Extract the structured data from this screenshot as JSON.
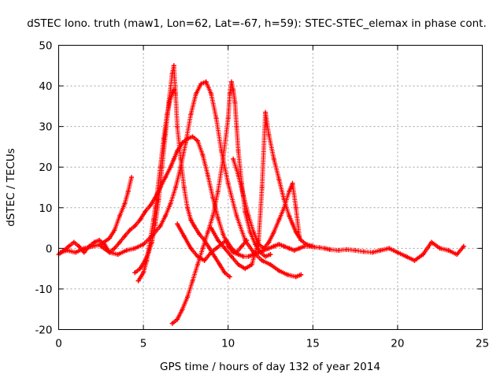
{
  "chart_data": {
    "type": "scatter",
    "title": "dSTEC Iono. truth (maw1, Lon=62, Lat=-67, h=59): STEC-STEC_elemax in phase cont.",
    "xlabel": "GPS time / hours of day 132 of year 2014",
    "ylabel": "dSTEC  / TECUs",
    "xlim": [
      0,
      25
    ],
    "ylim": [
      -20,
      50
    ],
    "xticks": [
      0,
      5,
      10,
      15,
      20,
      25
    ],
    "yticks": [
      -20,
      -10,
      0,
      10,
      20,
      30,
      40,
      50
    ],
    "grid": true,
    "marker": "+",
    "color": "#ff0000",
    "series": [
      {
        "x": [
          0.0,
          0.3,
          0.6,
          0.9,
          1.2,
          1.5,
          1.8,
          2.1,
          2.4,
          2.7,
          3.0,
          3.3,
          3.6,
          3.9,
          4.2,
          4.5,
          4.8,
          5.1,
          5.4,
          5.7,
          6.0,
          6.3,
          6.6,
          6.8,
          7.0,
          7.3,
          7.6,
          7.9,
          8.2,
          8.5,
          8.8,
          9.1,
          9.4,
          9.7,
          10.0,
          10.3,
          10.6,
          10.9,
          11.2,
          11.5,
          11.8,
          12.1,
          12.4,
          12.7,
          13.0,
          13.3,
          13.6,
          13.9,
          14.2,
          14.5,
          14.8,
          15.1,
          15.4,
          15.7,
          16.0,
          16.5,
          17.0,
          17.5,
          18.0,
          18.5,
          19.0,
          19.5,
          20.0,
          20.5,
          21.0,
          21.5,
          22.0,
          22.5,
          23.0,
          23.5,
          23.9
        ],
        "y": [
          -1.5,
          -0.5,
          0.5,
          1.5,
          0.5,
          -1.0,
          0.5,
          1.5,
          2.0,
          1.0,
          -1.0,
          0.0,
          1.5,
          3.0,
          4.5,
          5.5,
          7.0,
          9.0,
          10.5,
          12.5,
          15.0,
          17.5,
          20.0,
          22.0,
          24.0,
          26.0,
          27.0,
          27.5,
          26.5,
          23.0,
          18.0,
          12.5,
          7.5,
          3.5,
          0.5,
          -1.0,
          -1.5,
          -2.0,
          -2.0,
          -1.5,
          -1.0,
          -0.5,
          0.0,
          0.5,
          1.0,
          0.5,
          0.0,
          -0.5,
          0.0,
          0.5,
          0.5,
          0.3,
          0.2,
          0.0,
          -0.3,
          -0.5,
          -0.3,
          -0.5,
          -0.8,
          -1.0,
          -0.5,
          0.0,
          -1.0,
          -2.0,
          -3.0,
          -1.5,
          1.5,
          0.0,
          -0.5,
          -1.5,
          0.5
        ]
      },
      {
        "x": [
          0.1,
          0.5,
          1.0,
          1.5,
          2.0,
          2.5,
          3.0,
          3.3,
          3.6,
          3.9,
          4.1,
          4.3
        ],
        "y": [
          -1.0,
          -0.5,
          -1.0,
          0.0,
          0.5,
          1.0,
          2.5,
          4.5,
          8.0,
          11.0,
          14.0,
          17.5
        ]
      },
      {
        "x": [
          4.5,
          4.8,
          5.1,
          5.3,
          5.5,
          5.7,
          5.9,
          6.1,
          6.3,
          6.5,
          6.7,
          6.8,
          6.9,
          7.0,
          7.2,
          7.4,
          7.6,
          7.8,
          8.0,
          8.3,
          8.6,
          8.9,
          9.2,
          9.5,
          9.8,
          10.1
        ],
        "y": [
          -6.0,
          -5.0,
          -3.0,
          -1.0,
          1.5,
          6.0,
          12.0,
          20.0,
          28.0,
          36.0,
          43.0,
          45.0,
          38.0,
          30.0,
          22.0,
          15.0,
          10.0,
          7.0,
          5.5,
          3.5,
          2.0,
          0.0,
          -2.0,
          -4.0,
          -6.0,
          -7.0
        ]
      },
      {
        "x": [
          4.7,
          5.0,
          5.2,
          5.4,
          5.6,
          5.8,
          6.0,
          6.2,
          6.4,
          6.6,
          6.8
        ],
        "y": [
          -8.0,
          -6.0,
          -3.0,
          2.0,
          7.0,
          13.0,
          20.0,
          27.0,
          33.0,
          37.0,
          39.0
        ]
      },
      {
        "x": [
          2.5,
          3.0,
          3.5,
          4.0,
          4.5,
          5.0,
          5.5,
          6.0,
          6.3,
          6.6,
          6.9,
          7.2,
          7.5,
          7.8,
          8.1,
          8.4,
          8.7,
          9.0,
          9.3,
          9.6,
          10.0,
          10.5,
          11.0,
          11.5,
          12.0,
          12.5,
          13.0,
          13.5,
          14.0,
          14.3
        ],
        "y": [
          0.5,
          -1.0,
          -1.5,
          -0.5,
          0.0,
          1.0,
          3.0,
          5.5,
          8.0,
          11.0,
          15.0,
          20.0,
          26.0,
          33.0,
          38.0,
          40.5,
          41.0,
          38.0,
          32.0,
          24.0,
          16.0,
          8.0,
          2.0,
          -1.0,
          -3.0,
          -4.0,
          -5.5,
          -6.5,
          -7.0,
          -6.5
        ]
      },
      {
        "x": [
          6.7,
          7.0,
          7.3,
          7.6,
          7.9,
          8.2,
          8.5,
          8.8,
          9.1,
          9.4,
          9.7,
          10.0,
          10.1,
          10.2,
          10.3,
          10.4,
          10.5,
          10.6,
          10.8,
          11.0,
          11.3,
          11.6,
          11.9,
          12.2,
          12.5
        ],
        "y": [
          -18.5,
          -17.5,
          -15.0,
          -12.0,
          -8.0,
          -4.0,
          0.0,
          4.0,
          8.0,
          14.0,
          22.0,
          32.0,
          38.0,
          41.0,
          39.0,
          36.0,
          30.0,
          24.0,
          16.0,
          9.0,
          4.0,
          1.0,
          -1.0,
          -2.0,
          -1.5
        ]
      },
      {
        "x": [
          9.0,
          9.4,
          9.8,
          10.2,
          10.6,
          11.0,
          11.4,
          11.8,
          12.0,
          12.2,
          12.4,
          12.7,
          13.0,
          13.3,
          13.6,
          13.8,
          14.0,
          14.3,
          14.6,
          15.0
        ],
        "y": [
          5.0,
          2.0,
          0.0,
          -2.0,
          -4.0,
          -5.0,
          -4.0,
          2.0,
          15.0,
          33.5,
          28.0,
          22.0,
          17.0,
          12.0,
          8.0,
          6.0,
          4.0,
          2.0,
          1.0,
          0.5
        ]
      },
      {
        "x": [
          10.3,
          10.6,
          10.9,
          11.2,
          11.5,
          11.8,
          12.1,
          12.4,
          12.7,
          13.0,
          13.3,
          13.6,
          13.8,
          14.0,
          14.2
        ],
        "y": [
          22.0,
          18.0,
          13.0,
          8.0,
          4.0,
          1.0,
          0.0,
          1.5,
          4.0,
          7.0,
          10.0,
          14.0,
          16.0,
          10.0,
          3.0
        ]
      },
      {
        "x": [
          7.0,
          7.4,
          7.8,
          8.2,
          8.6,
          9.0,
          9.3,
          9.6,
          9.9,
          10.2,
          10.5,
          10.8,
          11.1
        ],
        "y": [
          6.0,
          3.0,
          0.0,
          -2.0,
          -3.0,
          -1.0,
          0.0,
          1.0,
          2.0,
          0.0,
          -1.0,
          0.5,
          2.0
        ]
      }
    ]
  }
}
